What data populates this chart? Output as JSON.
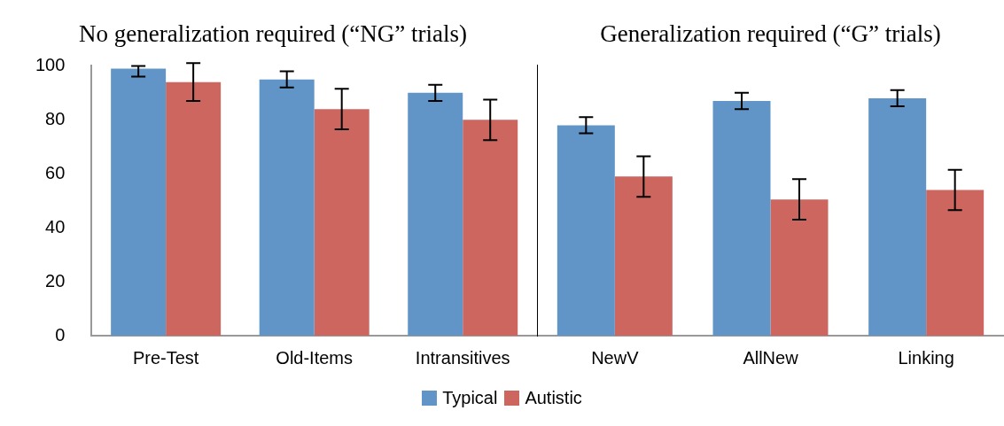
{
  "chart_data": [
    {
      "type": "bar",
      "title": "No generalization required (“NG” trials)",
      "categories": [
        "Pre-Test",
        "Old-Items",
        "Intransitives"
      ],
      "series": [
        {
          "color": "#6195c8",
          "values": [
            99,
            95,
            90
          ],
          "errors": [
            [
              96,
              100
            ],
            3,
            3
          ]
        },
        {
          "color": "#cc665f",
          "values": [
            94,
            84,
            80
          ],
          "errors": [
            7,
            7.5,
            7.5
          ]
        }
      ],
      "ylim": [
        0,
        100
      ],
      "yticks": [
        0,
        20,
        40,
        60,
        80,
        100
      ],
      "grid": false
    },
    {
      "type": "bar",
      "title": "Generalization required (“G” trials)",
      "categories": [
        "NewV",
        "AllNew",
        "Linking"
      ],
      "series": [
        {
          "name": "Typical",
          "color": "#6195c8",
          "values": [
            78,
            87,
            88
          ],
          "errors": [
            3,
            3,
            3
          ]
        },
        {
          "name": "Autistic",
          "color": "#cc665f",
          "values": [
            59,
            50.5,
            54
          ],
          "errors": [
            7.5,
            7.5,
            7.5
          ]
        }
      ],
      "ylim": [
        0,
        100
      ],
      "yticks": [
        0,
        20,
        40,
        60,
        80,
        100
      ],
      "grid": false,
      "tick_labels": "x",
      "legend": "bottom"
    }
  ]
}
